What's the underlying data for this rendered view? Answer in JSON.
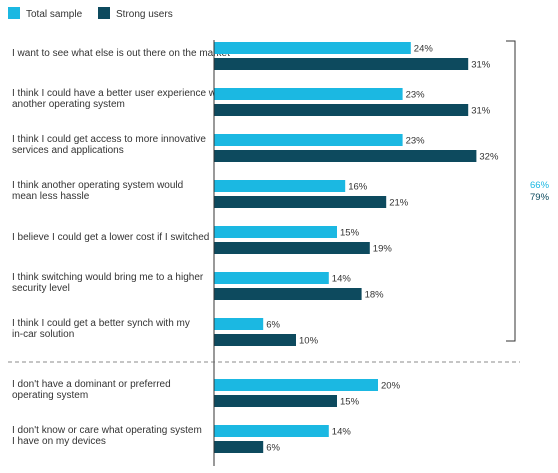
{
  "chart_data": {
    "type": "bar",
    "orientation": "horizontal",
    "value_suffix": "%",
    "series": [
      {
        "name": "Total sample",
        "color": "#1bb8e2",
        "values": [
          24,
          23,
          23,
          16,
          15,
          14,
          6,
          20,
          14
        ]
      },
      {
        "name": "Strong users",
        "color": "#0d4a5e",
        "values": [
          31,
          31,
          32,
          21,
          19,
          18,
          10,
          15,
          6
        ]
      }
    ],
    "categories": [
      [
        "I want to see what else is out there on the market"
      ],
      [
        "I think I could have a better user experience with",
        "another operating system"
      ],
      [
        "I think I could get access to more innovative",
        "services and applications"
      ],
      [
        "I think another operating system would",
        "mean less hassle"
      ],
      [
        "I believe I could get a lower cost if I switched"
      ],
      [
        "I think switching would bring me to a higher",
        "security level"
      ],
      [
        "I think I could get a better synch with my",
        "in-car solution"
      ],
      [
        "I don't have a dominant or preferred",
        "operating system"
      ],
      [
        "I don't know or care what operating system",
        "I have on my devices"
      ]
    ],
    "bracket_totals": [
      {
        "text": "66%",
        "color": "#1bb8e2"
      },
      {
        "text": "79%",
        "color": "#0d4a5e"
      }
    ],
    "xlim": [
      0,
      40
    ],
    "grid": false,
    "legend_position": "top-left"
  }
}
